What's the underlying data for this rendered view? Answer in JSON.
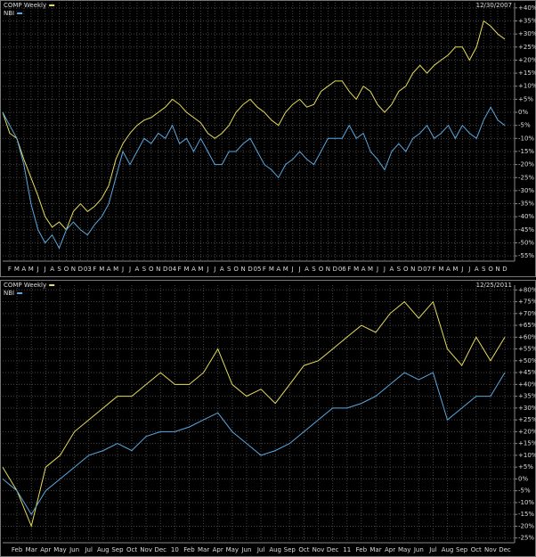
{
  "chart_data": [
    {
      "type": "line",
      "date": "12/30/2007",
      "grid": true,
      "categories": [
        null,
        "F",
        "M",
        "A",
        "M",
        "J",
        "J",
        "A",
        "S",
        "O",
        "N",
        "D",
        "03",
        "F",
        "M",
        "A",
        "M",
        "J",
        "J",
        "A",
        "S",
        "O",
        "N",
        "D",
        "04",
        "F",
        "M",
        "A",
        "M",
        "J",
        "J",
        "A",
        "S",
        "O",
        "N",
        "D",
        "05",
        "F",
        "M",
        "A",
        "M",
        "J",
        "J",
        "A",
        "S",
        "O",
        "N",
        "D",
        "06",
        "F",
        "M",
        "A",
        "M",
        "J",
        "J",
        "A",
        "S",
        "O",
        "N",
        "D",
        "07",
        "F",
        "M",
        "A",
        "M",
        "J",
        "J",
        "A",
        "S",
        "O",
        "N",
        "D"
      ],
      "series": [
        {
          "name": "COMP Weekly",
          "color": "#e6dc5a",
          "values": [
            0,
            -8,
            -10,
            -18,
            -25,
            -32,
            -40,
            -44,
            -42,
            -45,
            -38,
            -35,
            -38,
            -36,
            -33,
            -28,
            -18,
            -12,
            -8,
            -5,
            -3,
            -2,
            0,
            2,
            5,
            3,
            0,
            -2,
            -4,
            -8,
            -10,
            -8,
            -5,
            0,
            3,
            5,
            2,
            0,
            -3,
            -5,
            0,
            3,
            5,
            2,
            3,
            8,
            10,
            12,
            12,
            8,
            5,
            10,
            8,
            3,
            0,
            3,
            8,
            10,
            15,
            18,
            15,
            18,
            20,
            22,
            25,
            25,
            20,
            25,
            35,
            33,
            30,
            28
          ]
        },
        {
          "name": "NBI",
          "color": "#5aa8e0",
          "values": [
            0,
            -5,
            -10,
            -20,
            -35,
            -45,
            -50,
            -47,
            -52,
            -45,
            -42,
            -45,
            -47,
            -43,
            -40,
            -35,
            -25,
            -15,
            -20,
            -15,
            -10,
            -12,
            -8,
            -10,
            -5,
            -12,
            -10,
            -15,
            -10,
            -15,
            -20,
            -20,
            -15,
            -15,
            -12,
            -10,
            -15,
            -20,
            -22,
            -25,
            -20,
            -18,
            -15,
            -18,
            -20,
            -15,
            -10,
            -10,
            -10,
            -5,
            -10,
            -8,
            -15,
            -18,
            -22,
            -15,
            -12,
            -15,
            -10,
            -8,
            -5,
            -10,
            -8,
            -5,
            -10,
            -5,
            -8,
            -10,
            -3,
            2,
            -3,
            -5
          ]
        }
      ],
      "ylim": [
        -57,
        42
      ],
      "yticks": [
        {
          "value": 40,
          "label": "+40%"
        },
        {
          "value": 35,
          "label": "+35%"
        },
        {
          "value": 30,
          "label": "+30%"
        },
        {
          "value": 25,
          "label": "+25%"
        },
        {
          "value": 20,
          "label": "+20%"
        },
        {
          "value": 15,
          "label": "+15%"
        },
        {
          "value": 10,
          "label": "+10%"
        },
        {
          "value": 5,
          "label": "+5%"
        },
        {
          "value": 0,
          "label": "0%"
        },
        {
          "value": -5,
          "label": "-5%"
        },
        {
          "value": -10,
          "label": "-10%"
        },
        {
          "value": -15,
          "label": "-15%"
        },
        {
          "value": -20,
          "label": "-20%"
        },
        {
          "value": -25,
          "label": "-25%"
        },
        {
          "value": -30,
          "label": "-30%"
        },
        {
          "value": -35,
          "label": "-35%"
        },
        {
          "value": -40,
          "label": "-40%"
        },
        {
          "value": -45,
          "label": "-45%"
        },
        {
          "value": -50,
          "label": "-50%"
        },
        {
          "value": -55,
          "label": "-55%"
        }
      ]
    },
    {
      "type": "line",
      "date": "12/25/2011",
      "grid": true,
      "categories": [
        null,
        "Feb",
        "Mar",
        "Apr",
        "May",
        "Jun",
        "Jul",
        "Aug",
        "Sep",
        "Oct",
        "Nov",
        "Dec",
        "10",
        "Feb",
        "Mar",
        "Apr",
        "May",
        "Jun",
        "Jul",
        "Aug",
        "Sep",
        "Oct",
        "Nov",
        "Dec",
        "11",
        "Feb",
        "Mar",
        "Apr",
        "May",
        "Jun",
        "Jul",
        "Aug",
        "Sep",
        "Oct",
        "Nov",
        "Dec"
      ],
      "series": [
        {
          "name": "COMP Weekly",
          "color": "#e6dc5a",
          "values": [
            5,
            -5,
            -20,
            5,
            10,
            20,
            25,
            30,
            35,
            35,
            40,
            45,
            40,
            40,
            45,
            55,
            40,
            35,
            38,
            32,
            40,
            48,
            50,
            55,
            60,
            65,
            62,
            70,
            75,
            68,
            75,
            55,
            48,
            60,
            50,
            60
          ]
        },
        {
          "name": "NBI",
          "color": "#5aa8e0",
          "values": [
            0,
            -5,
            -15,
            -5,
            0,
            5,
            10,
            12,
            15,
            12,
            18,
            20,
            20,
            22,
            25,
            28,
            20,
            15,
            10,
            12,
            15,
            20,
            25,
            30,
            30,
            32,
            35,
            40,
            45,
            42,
            45,
            25,
            30,
            35,
            35,
            45
          ]
        }
      ],
      "ylim": [
        -27,
        82
      ],
      "yticks": [
        {
          "value": 80,
          "label": "+80%"
        },
        {
          "value": 75,
          "label": "+75%"
        },
        {
          "value": 70,
          "label": "+70%"
        },
        {
          "value": 65,
          "label": "+65%"
        },
        {
          "value": 60,
          "label": "+60%"
        },
        {
          "value": 55,
          "label": "+55%"
        },
        {
          "value": 50,
          "label": "+50%"
        },
        {
          "value": 45,
          "label": "+45%"
        },
        {
          "value": 40,
          "label": "+40%"
        },
        {
          "value": 35,
          "label": "+35%"
        },
        {
          "value": 30,
          "label": "+30%"
        },
        {
          "value": 25,
          "label": "+25%"
        },
        {
          "value": 20,
          "label": "+20%"
        },
        {
          "value": 15,
          "label": "+15%"
        },
        {
          "value": 10,
          "label": "+10%"
        },
        {
          "value": 5,
          "label": "+5%"
        },
        {
          "value": 0,
          "label": "0%"
        },
        {
          "value": -5,
          "label": "-5%"
        },
        {
          "value": -10,
          "label": "-10%"
        },
        {
          "value": -15,
          "label": "-15%"
        },
        {
          "value": -20,
          "label": "-20%"
        },
        {
          "value": -25,
          "label": "-25%"
        }
      ]
    }
  ]
}
